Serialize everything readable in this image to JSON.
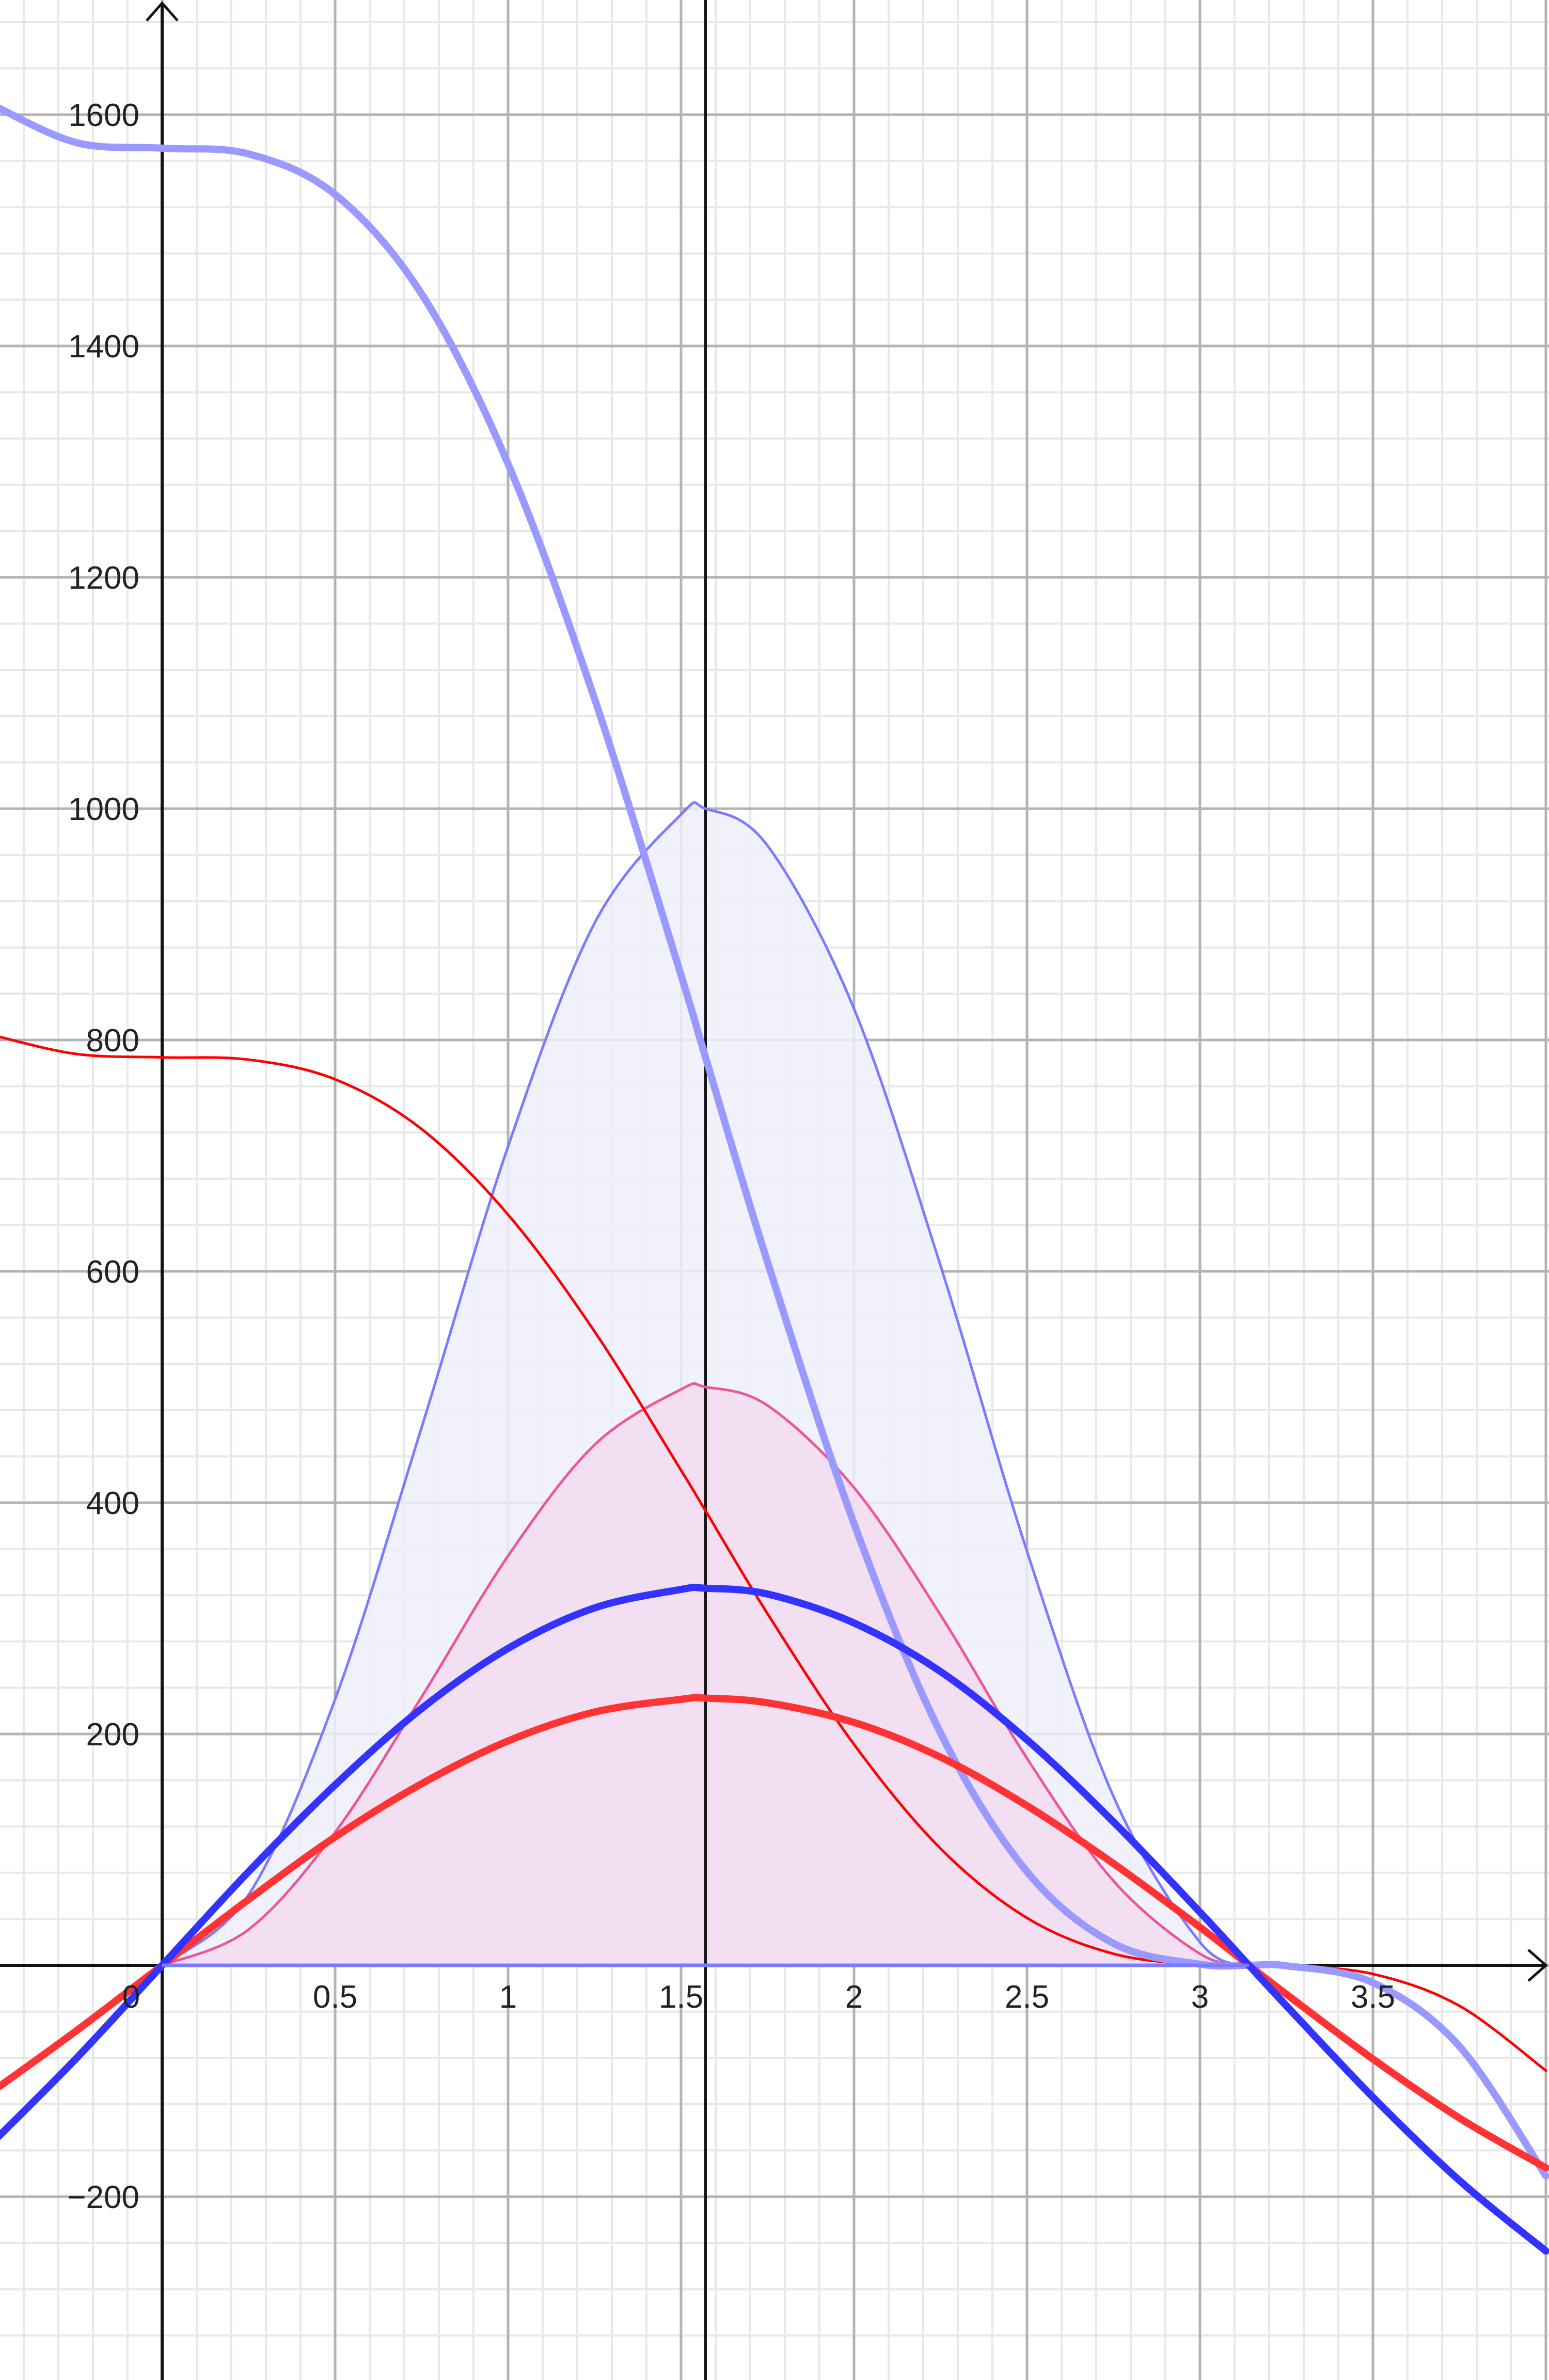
{
  "chart_data": {
    "type": "line",
    "title": "",
    "xlabel": "",
    "ylabel": "",
    "xlim": [
      -0.469,
      4.009
    ],
    "ylim": [
      -358,
      1699
    ],
    "grid": true,
    "grid_major": {
      "x": 0.5,
      "y": 200
    },
    "grid_minor": {
      "x": 0.1,
      "y": 40
    },
    "x_tick_labels": [
      "0",
      "0.5",
      "1",
      "1.5",
      "2",
      "2.5",
      "3",
      "3.5"
    ],
    "y_tick_labels": [
      "1600",
      "1400",
      "1200",
      "1000",
      "800",
      "600",
      "400",
      "200",
      "−200"
    ],
    "x_ticks": [
      0,
      0.5,
      1,
      1.5,
      2,
      2.5,
      3,
      3.5
    ],
    "y_ticks": [
      1600,
      1400,
      1200,
      1000,
      800,
      600,
      400,
      200,
      -200
    ],
    "vertical_line_x": 1.5708,
    "x": [
      -0.5,
      -0.25,
      0,
      0.25,
      0.5,
      0.75,
      1,
      1.25,
      1.5,
      1.5708,
      1.75,
      2,
      2.25,
      2.5,
      2.75,
      3,
      3.1416,
      3.25,
      3.5,
      3.75,
      4
    ],
    "series": [
      {
        "color": "#7b7bff",
        "width": "thin",
        "filled": true,
        "fill": "#eeeefc",
        "domain": [
          0,
          3.1416
        ],
        "values": [
          null,
          null,
          0,
          61,
          230,
          465,
          708,
          901,
          995,
          1000,
          968,
          827,
          605,
          358,
          146,
          20,
          0,
          null,
          null,
          null,
          null
        ]
      },
      {
        "color": "#ee5599",
        "width": "thin",
        "filled": true,
        "fill": "#f3dcf0",
        "domain": [
          0,
          3.1416
        ],
        "values": [
          null,
          null,
          0,
          31,
          115,
          232,
          354,
          450,
          498,
          500,
          484,
          413,
          303,
          179,
          73,
          10,
          0,
          null,
          null,
          null,
          null
        ]
      },
      {
        "color": "#ff0000",
        "width": "thin",
        "filled": false,
        "values": [
          805,
          788,
          785,
          783,
          766,
          723,
          649,
          548,
          428,
          393,
          304,
          191,
          101,
          41,
          10,
          0.5,
          0,
          -0.2,
          -7.5,
          -35,
          -91
        ]
      },
      {
        "color": "#9999ff",
        "width": "thick",
        "filled": false,
        "values": [
          1610,
          1576,
          1571,
          1566,
          1531,
          1445,
          1298,
          1095,
          856,
          785,
          608,
          382,
          201,
          81,
          19,
          1,
          0,
          -0.4,
          -15,
          -70,
          -182
        ]
      },
      {
        "color": "#ff3333",
        "width": "thick",
        "filled": false,
        "values": [
          -111,
          -57,
          0,
          57,
          111,
          157,
          194,
          219,
          230,
          231,
          227,
          210,
          180,
          138,
          88,
          33,
          0,
          -25,
          -81,
          -132,
          -175
        ]
      },
      {
        "color": "#3333ff",
        "width": "thick",
        "filled": false,
        "values": [
          -156,
          -81,
          0,
          81,
          156,
          222,
          274,
          309,
          325,
          326,
          321,
          296,
          254,
          195,
          124,
          46,
          0,
          -35,
          -114,
          -186,
          -247
        ]
      }
    ]
  }
}
